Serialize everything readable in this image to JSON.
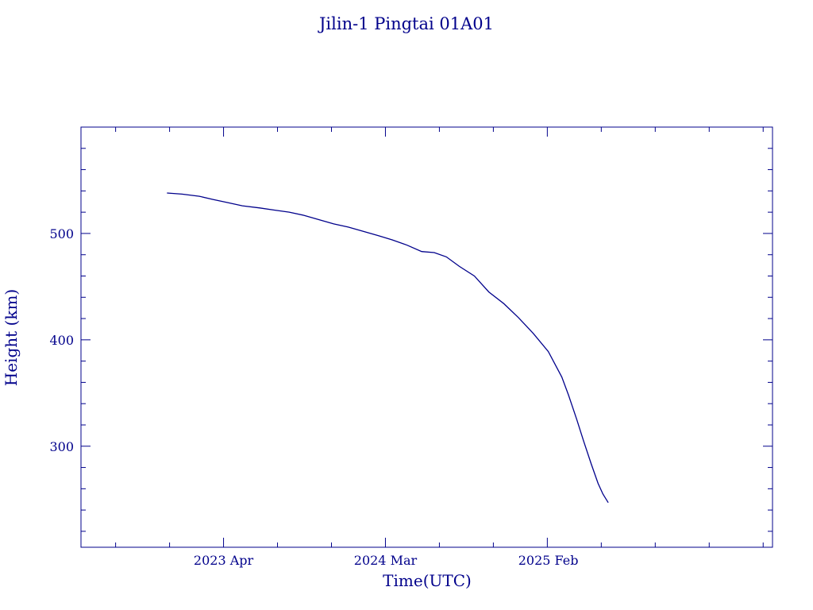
{
  "chart_data": {
    "type": "line",
    "title": "Jilin-1 Pingtai 01A01",
    "xlabel": "Time(UTC)",
    "ylabel": "Height (km)",
    "x_ticks": [
      "2023 Apr",
      "2024 Mar",
      "2025 Feb"
    ],
    "y_ticks": [
      300,
      400,
      500
    ],
    "ylim": [
      205,
      600
    ],
    "xlim": [
      "2022-06-10",
      "2026-05-11"
    ],
    "grid": false,
    "line_color": "#00008b",
    "series": [
      {
        "x": [
          "2022-12-05",
          "2023-01-05",
          "2023-02-10",
          "2023-03-10",
          "2023-04-10",
          "2023-05-10",
          "2023-06-15",
          "2023-07-15",
          "2023-08-15",
          "2023-09-15",
          "2023-10-15",
          "2023-11-15",
          "2023-12-15",
          "2024-01-15",
          "2024-02-15",
          "2024-03-15",
          "2024-04-15",
          "2024-05-15",
          "2024-06-10",
          "2024-07-05",
          "2024-08-01",
          "2024-09-01",
          "2024-10-01",
          "2024-11-01",
          "2024-12-01",
          "2025-01-01",
          "2025-02-01",
          "2025-03-01",
          "2025-03-15",
          "2025-04-01",
          "2025-04-15",
          "2025-05-01",
          "2025-05-15",
          "2025-05-25",
          "2025-06-05"
        ],
        "y": [
          538,
          537,
          535,
          532,
          529,
          526,
          524,
          522,
          520,
          517,
          513,
          509,
          506,
          502,
          498,
          494,
          489,
          483,
          482,
          478,
          469,
          460,
          445,
          434,
          421,
          406,
          389,
          365,
          348,
          325,
          305,
          283,
          265,
          255,
          247
        ]
      }
    ]
  }
}
